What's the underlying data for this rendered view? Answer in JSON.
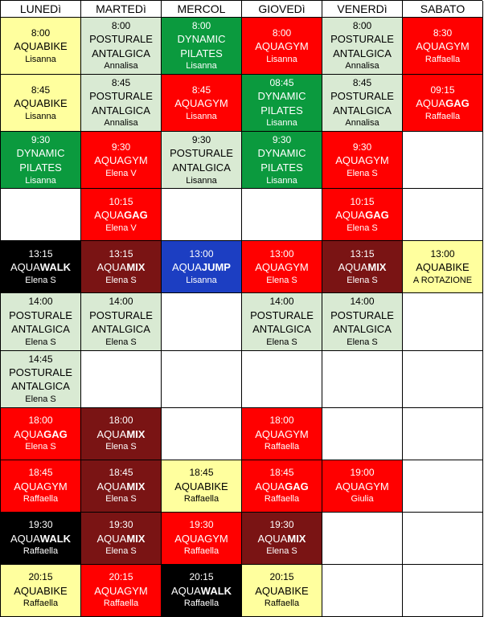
{
  "colors": {
    "yellow": {
      "bg": "#ffff9e",
      "text": "#000000"
    },
    "lgreen": {
      "bg": "#d9ead3",
      "text": "#000000"
    },
    "green": {
      "bg": "#0b9a3e",
      "text": "#ffffff"
    },
    "red": {
      "bg": "#ff0000",
      "text": "#ffffff"
    },
    "darkred": {
      "bg": "#7a1414",
      "text": "#ffffff"
    },
    "black": {
      "bg": "#000000",
      "text": "#ffffff"
    },
    "blue": {
      "bg": "#1c3ec2",
      "text": "#ffffff"
    },
    "white": {
      "bg": "#ffffff",
      "text": "#000000"
    }
  },
  "header": {
    "fontsize": 14,
    "days": [
      "LUNEDì",
      "MARTEDì",
      "MERCOL",
      "GIOVEDì",
      "VENERDì",
      "SABATO"
    ]
  },
  "cell_style": {
    "time_fontsize": 12,
    "activity_fontsize": 13,
    "instructor_fontsize": 11,
    "min_height": 65
  },
  "rows": [
    [
      {
        "time": "8:00",
        "activity": "AQUABIKE",
        "instructor": "Lisanna",
        "theme": "yellow"
      },
      {
        "time": "8:00",
        "activity": "POSTURALE ANTALGICA",
        "instructor": "Annalisa",
        "theme": "lgreen"
      },
      {
        "time": "8:00",
        "activity": "DYNAMIC PILATES",
        "instructor": "Lisanna",
        "theme": "green"
      },
      {
        "time": "8:00",
        "activity": "AQUAGYM",
        "instructor": "Lisanna",
        "theme": "red"
      },
      {
        "time": "8:00",
        "activity": "POSTURALE ANTALGICA",
        "instructor": "Annalisa",
        "theme": "lgreen"
      },
      {
        "time": "8:30",
        "activity": "AQUAGYM",
        "instructor": "Raffaella",
        "theme": "red"
      }
    ],
    [
      {
        "time": "8:45",
        "activity": "AQUABIKE",
        "instructor": "Lisanna",
        "theme": "yellow"
      },
      {
        "time": "8:45",
        "activity": "POSTURALE ANTALGICA",
        "instructor": "Annalisa",
        "theme": "lgreen"
      },
      {
        "time": "8:45",
        "activity": "AQUAGYM",
        "instructor": "Lisanna",
        "theme": "red"
      },
      {
        "time": "08:45",
        "activity": "DYNAMIC PILATES",
        "instructor": "Lisanna",
        "theme": "green"
      },
      {
        "time": "8:45",
        "activity": "POSTURALE ANTALGICA",
        "instructor": "Annalisa",
        "theme": "lgreen"
      },
      {
        "time": "09:15",
        "activity": "AQUA|GAG",
        "instructor": "Raffaella",
        "theme": "red"
      }
    ],
    [
      {
        "time": "9:30",
        "activity": "DYNAMIC PILATES",
        "instructor": "Lisanna",
        "theme": "green"
      },
      {
        "time": "9:30",
        "activity": "AQUAGYM",
        "instructor": "Elena V",
        "theme": "red"
      },
      {
        "time": "9:30",
        "activity": "POSTURALE ANTALGICA",
        "instructor": "Lisanna",
        "theme": "lgreen"
      },
      {
        "time": "9:30",
        "activity": "DYNAMIC PILATES",
        "instructor": "Lisanna",
        "theme": "green"
      },
      {
        "time": "9:30",
        "activity": "AQUAGYM",
        "instructor": "Elena S",
        "theme": "red"
      },
      {
        "empty": true
      }
    ],
    [
      {
        "empty": true
      },
      {
        "time": "10:15",
        "activity": "AQUA|GAG",
        "instructor": "Elena V",
        "theme": "red"
      },
      {
        "empty": true
      },
      {
        "empty": true
      },
      {
        "time": "10:15",
        "activity": "AQUA|GAG",
        "instructor": "Elena S",
        "theme": "red"
      },
      {
        "empty": true
      }
    ],
    [
      {
        "time": "13:15",
        "activity": "AQUA|WALK",
        "instructor": "Elena S",
        "theme": "black"
      },
      {
        "time": "13:15",
        "activity": "AQUA|MIX",
        "instructor": "Elena S",
        "theme": "darkred"
      },
      {
        "time": "13:00",
        "activity": "AQUA|JUMP",
        "instructor": "Lisanna",
        "theme": "blue"
      },
      {
        "time": "13:00",
        "activity": "AQUAGYM",
        "instructor": "Elena S",
        "theme": "red"
      },
      {
        "time": "13:15",
        "activity": "AQUA|MIX",
        "instructor": "Elena S",
        "theme": "darkred"
      },
      {
        "time": "13:00",
        "activity": "AQUABIKE",
        "instructor": "A ROTAZIONE",
        "theme": "yellow"
      }
    ],
    [
      {
        "time": "14:00",
        "activity": "POSTURALE ANTALGICA",
        "instructor": "Elena S",
        "theme": "lgreen"
      },
      {
        "time": "14:00",
        "activity": "POSTURALE ANTALGICA",
        "instructor": "Elena S",
        "theme": "lgreen"
      },
      {
        "empty": true
      },
      {
        "time": "14:00",
        "activity": "POSTURALE ANTALGICA",
        "instructor": "Elena S",
        "theme": "lgreen"
      },
      {
        "time": "14:00",
        "activity": "POSTURALE ANTALGICA",
        "instructor": "Elena S",
        "theme": "lgreen"
      },
      {
        "empty": true
      }
    ],
    [
      {
        "time": "14:45",
        "activity": "POSTURALE ANTALGICA",
        "instructor": "Elena S",
        "theme": "lgreen"
      },
      {
        "empty": true
      },
      {
        "empty": true
      },
      {
        "empty": true
      },
      {
        "empty": true
      },
      {
        "empty": true
      }
    ],
    [
      {
        "time": "18:00",
        "activity": "AQUA|GAG",
        "instructor": "Elena S",
        "theme": "red"
      },
      {
        "time": "18:00",
        "activity": "AQUA|MIX",
        "instructor": "Elena S",
        "theme": "darkred"
      },
      {
        "empty": true
      },
      {
        "time": "18:00",
        "activity": "AQUAGYM",
        "instructor": "Raffaella",
        "theme": "red"
      },
      {
        "empty": true
      },
      {
        "empty": true
      }
    ],
    [
      {
        "time": "18:45",
        "activity": "AQUAGYM",
        "instructor": "Raffaella",
        "theme": "red"
      },
      {
        "time": "18:45",
        "activity": "AQUA|MIX",
        "instructor": "Elena S",
        "theme": "darkred"
      },
      {
        "time": "18:45",
        "activity": "AQUABIKE",
        "instructor": "Raffaella",
        "theme": "yellow"
      },
      {
        "time": "18:45",
        "activity": "AQUA|GAG",
        "instructor": "Raffaella",
        "theme": "red"
      },
      {
        "time": "19:00",
        "activity": "AQUAGYM",
        "instructor": "Giulia",
        "theme": "red"
      },
      {
        "empty": true
      }
    ],
    [
      {
        "time": "19:30",
        "activity": "AQUA|WALK",
        "instructor": "Raffaella",
        "theme": "black"
      },
      {
        "time": "19:30",
        "activity": "AQUA|MIX",
        "instructor": "Elena S",
        "theme": "darkred"
      },
      {
        "time": "19:30",
        "activity": "AQUAGYM",
        "instructor": "Raffaella",
        "theme": "red"
      },
      {
        "time": "19:30",
        "activity": "AQUA|MIX",
        "instructor": "Elena S",
        "theme": "darkred"
      },
      {
        "empty": true
      },
      {
        "empty": true
      }
    ],
    [
      {
        "time": "20:15",
        "activity": "AQUABIKE",
        "instructor": "Raffaella",
        "theme": "yellow"
      },
      {
        "time": "20:15",
        "activity": "AQUAGYM",
        "instructor": "Raffaella",
        "theme": "red"
      },
      {
        "time": "20:15",
        "activity": "AQUA|WALK",
        "instructor": "Raffaella",
        "theme": "black"
      },
      {
        "time": "20:15",
        "activity": "AQUABIKE",
        "instructor": "Raffaella",
        "theme": "yellow"
      },
      {
        "empty": true
      },
      {
        "empty": true
      }
    ]
  ]
}
